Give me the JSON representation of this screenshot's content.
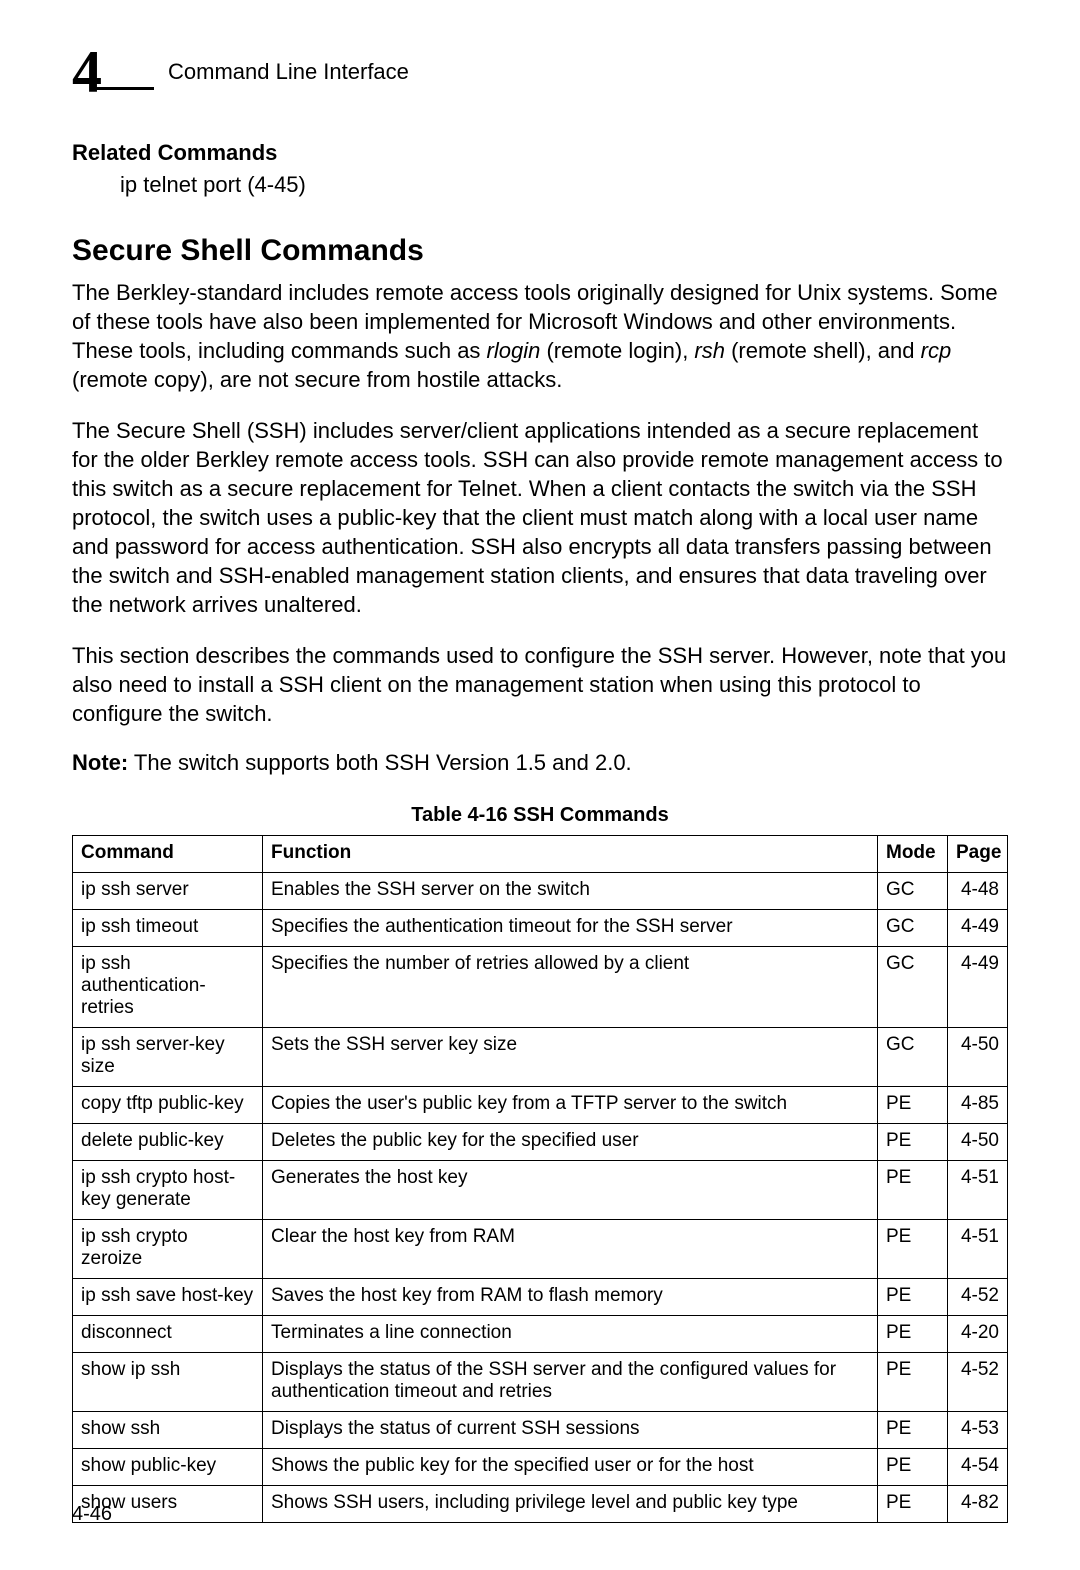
{
  "header": {
    "chapter_number": "4",
    "title": "Command Line Interface"
  },
  "related": {
    "heading": "Related Commands",
    "line": "ip telnet port (4-45)"
  },
  "section": {
    "title": "Secure Shell Commands",
    "p1_a": "The Berkley-standard includes remote access tools originally designed for Unix systems. Some of these tools have also been implemented for Microsoft Windows and other environments. These tools, including commands such as ",
    "p1_i1": "rlogin",
    "p1_b": " (remote login), ",
    "p1_i2": "rsh",
    "p1_c": " (remote shell), and ",
    "p1_i3": "rcp",
    "p1_d": " (remote copy), are not secure from hostile attacks.",
    "p2": "The Secure Shell (SSH) includes server/client applications intended as a secure replacement for the older Berkley remote access tools. SSH can also provide remote management access to this switch as a secure replacement for Telnet. When a client contacts the switch via the SSH protocol, the switch uses a public-key that the client must match along with a local user name and password for access authentication. SSH also encrypts all data transfers passing between the switch and SSH-enabled management station clients, and ensures that data traveling over the network arrives unaltered.",
    "p3": "This section describes the commands used to configure the SSH server. However, note that you also need to install a SSH client on the management station when using this protocol to configure the switch.",
    "note_label": "Note:",
    "note_text": " The switch supports both SSH Version 1.5 and 2.0."
  },
  "table": {
    "caption": "Table 4-16  SSH Commands",
    "headers": {
      "cmd": "Command",
      "func": "Function",
      "mode": "Mode",
      "page": "Page"
    },
    "rows": [
      {
        "cmd": "ip ssh server",
        "func": "Enables the SSH server on the switch",
        "mode": "GC",
        "page": "4-48"
      },
      {
        "cmd": "ip ssh timeout",
        "func": "Specifies the authentication timeout for the SSH server",
        "mode": "GC",
        "page": "4-49"
      },
      {
        "cmd": "ip ssh authentication-retries",
        "func": "Specifies the number of retries allowed by a client",
        "mode": "GC",
        "page": "4-49"
      },
      {
        "cmd": "ip ssh server-key size",
        "func": "Sets the SSH server key size",
        "mode": "GC",
        "page": "4-50"
      },
      {
        "cmd": "copy tftp public-key",
        "func": "Copies the user's public key from a TFTP server to the switch",
        "mode": "PE",
        "page": "4-85"
      },
      {
        "cmd": "delete public-key",
        "func": "Deletes the public key for the specified user",
        "mode": "PE",
        "page": "4-50"
      },
      {
        "cmd": "ip ssh crypto host-key generate",
        "func": "Generates the host key",
        "mode": "PE",
        "page": "4-51"
      },
      {
        "cmd": "ip ssh crypto zeroize",
        "func": "Clear the host key from RAM",
        "mode": "PE",
        "page": "4-51"
      },
      {
        "cmd": "ip ssh save host-key",
        "func": "Saves the host key from RAM to flash memory",
        "mode": "PE",
        "page": "4-52"
      },
      {
        "cmd": "disconnect",
        "func": "Terminates a line connection",
        "mode": "PE",
        "page": "4-20"
      },
      {
        "cmd": "show ip ssh",
        "func": "Displays the status of the SSH server and the configured values for authentication timeout and retries",
        "mode": "PE",
        "page": "4-52"
      },
      {
        "cmd": "show ssh",
        "func": "Displays the status of current SSH sessions",
        "mode": "PE",
        "page": "4-53"
      },
      {
        "cmd": "show public-key",
        "func": "Shows the public key for the specified user or for the host",
        "mode": "PE",
        "page": "4-54"
      },
      {
        "cmd": "show users",
        "func": "Shows SSH users, including privilege level and public key type",
        "mode": "PE",
        "page": "4-82"
      }
    ]
  },
  "footer": {
    "page_number": "4-46"
  }
}
